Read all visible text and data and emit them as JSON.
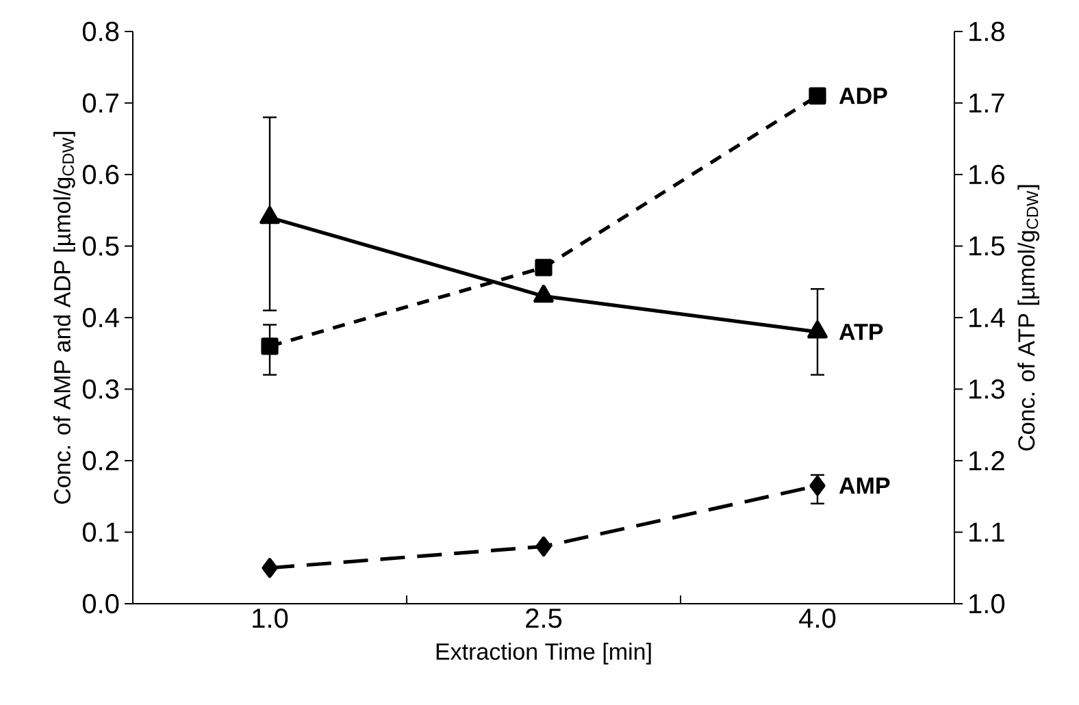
{
  "chart_data": {
    "type": "line",
    "categories": [
      "1.0",
      "2.5",
      "4.0"
    ],
    "xlabel": "Extraction Time [min]",
    "ylabel": "Conc. of AMP and ADP [µmol/g$_{CDW}$]",
    "y2label": "Conc. of ATP [µmol/g$_{CDW}$]",
    "ylim": [
      0,
      0.8
    ],
    "yticks": [
      {
        "value": 0,
        "label": "0.0"
      },
      {
        "value": 0.1,
        "label": "0.1"
      },
      {
        "value": 0.2,
        "label": "0.2"
      },
      {
        "value": 0.3,
        "label": "0.3"
      },
      {
        "value": 0.4,
        "label": "0.4"
      },
      {
        "value": 0.5,
        "label": "0.5"
      },
      {
        "value": 0.6,
        "label": "0.6"
      },
      {
        "value": 0.7,
        "label": "0.7"
      },
      {
        "value": 0.8,
        "label": "0.8"
      }
    ],
    "y2lim": [
      1.0,
      1.8
    ],
    "y2ticks": [
      {
        "value": 1.0,
        "label": "1.0"
      },
      {
        "value": 1.1,
        "label": "1.1"
      },
      {
        "value": 1.2,
        "label": "1.2"
      },
      {
        "value": 1.3,
        "label": "1.3"
      },
      {
        "value": 1.4,
        "label": "1.4"
      },
      {
        "value": 1.5,
        "label": "1.5"
      },
      {
        "value": 1.6,
        "label": "1.6"
      },
      {
        "value": 1.7,
        "label": "1.7"
      },
      {
        "value": 1.8,
        "label": "1.8"
      }
    ],
    "grid": false,
    "series": [
      {
        "name": "AMP",
        "color": "#000000",
        "marker": "diamond",
        "line_style": "long dashed",
        "values": [
          0.05,
          0.08,
          0.165
        ],
        "errors": [
          null,
          null,
          [
            0.14,
            0.18
          ]
        ]
      },
      {
        "name": "ADP",
        "color": "#000000",
        "marker": "square",
        "line_style": "dashed",
        "values": [
          0.36,
          0.47,
          0.71
        ],
        "errors": [
          [
            0.32,
            0.39
          ],
          null,
          null
        ]
      },
      {
        "name": "ATP",
        "color": "#000000",
        "marker": "triangle",
        "line_style": "solid",
        "axis": "y2",
        "values": [
          1.54,
          1.43,
          1.38
        ],
        "errors": [
          [
            1.41,
            1.68
          ],
          null,
          [
            1.32,
            1.44
          ]
        ]
      }
    ]
  }
}
